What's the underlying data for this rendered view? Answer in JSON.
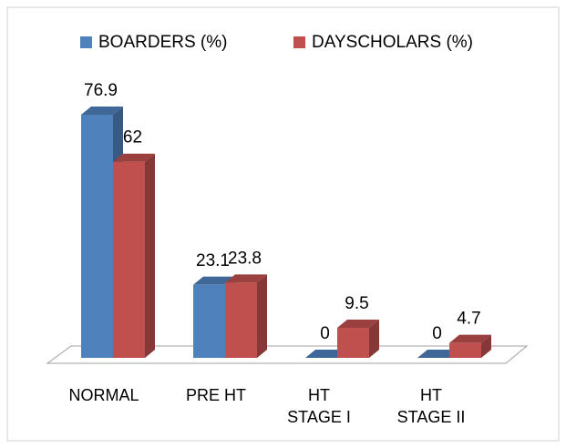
{
  "chart_data": {
    "type": "bar3d",
    "categories": [
      "NORMAL",
      "PRE HT",
      "HT STAGE I",
      "HT STAGE II"
    ],
    "series": [
      {
        "name": "BOARDERS (%)",
        "color": "#4f81bd",
        "values": [
          76.9,
          23.1,
          0,
          0
        ]
      },
      {
        "name": "DAYSCHOLARS (%)",
        "color": "#c0504d",
        "values": [
          62,
          23.8,
          9.5,
          4.7
        ]
      }
    ],
    "legend": "top"
  }
}
